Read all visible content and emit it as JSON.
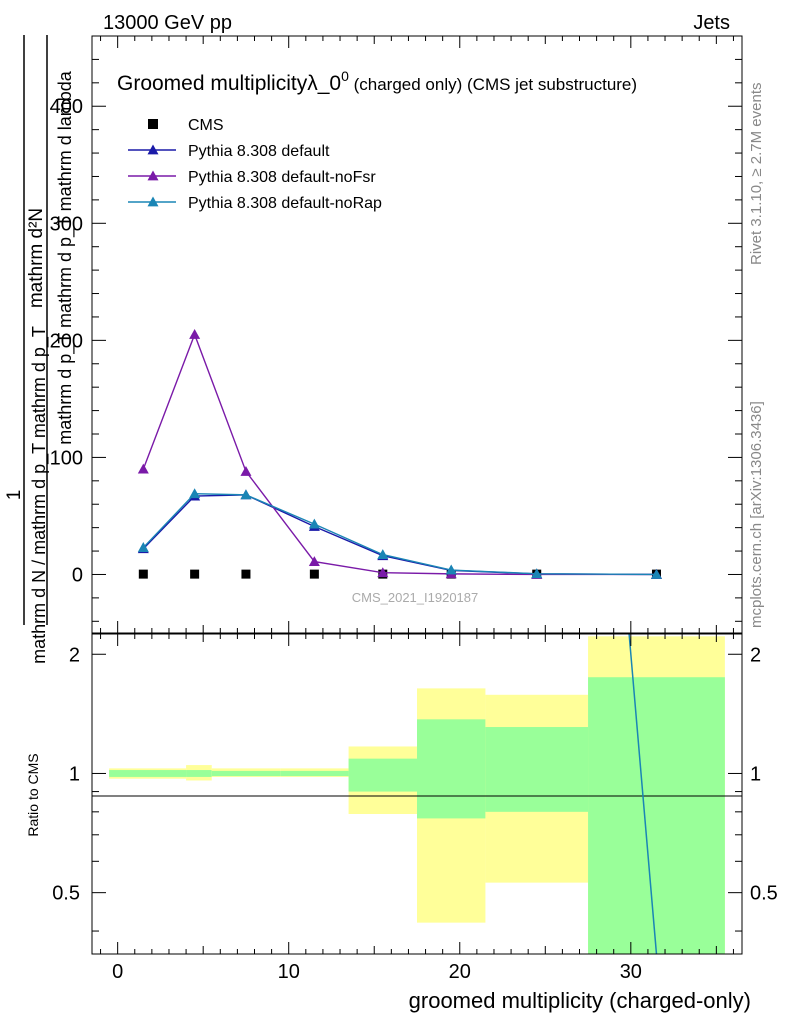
{
  "header": {
    "left": "13000 GeV pp",
    "right": "Jets"
  },
  "side_labels": {
    "rivet": "Rivet 3.1.10, ≥ 2.7M events",
    "mcplots": "mcplots.cern.ch [arXiv:1306.3436]"
  },
  "main_panel": {
    "title_main": "Groomed multiplicityλ_0",
    "title_sup": "0",
    "title_rest": " (charged only) (CMS jet substructure)",
    "watermark": "CMS_2021_I1920187",
    "ylabel_frac_num": "mathrm d²N",
    "ylabel_frac_den": "mathrm d p_T mathrm d p_T mathrm d lambda",
    "ylabel_prefactor_num": "1",
    "ylabel_prefactor_den": "mathrm d N / mathrm d p_T mathrm d p_T"
  },
  "ratio_panel": {
    "ylabel": "Ratio to CMS"
  },
  "xlabel": "groomed multiplicity (charged-only)",
  "chart_data": [
    {
      "type": "line",
      "xlim": [
        -1.5,
        36.5
      ],
      "ylim": [
        -50,
        460
      ],
      "yticks": [
        0,
        100,
        200,
        300,
        400
      ],
      "legend_position": "top-left",
      "series": [
        {
          "name": "CMS",
          "marker": "square",
          "color": "#000000",
          "x": [
            1.5,
            4.5,
            7.5,
            11.5,
            15.5,
            19.5,
            24.5,
            31.5
          ],
          "y": [
            0.3,
            0.3,
            0.3,
            0.3,
            0.3,
            0.3,
            0.3,
            0.3
          ]
        },
        {
          "name": "Pythia 8.308 default",
          "marker": "triangle",
          "color": "#1a1aa8",
          "x": [
            1.5,
            4.5,
            7.5,
            11.5,
            15.5,
            19.5,
            24.5,
            31.5
          ],
          "y": [
            22,
            67,
            68,
            41,
            16,
            3.5,
            0.5,
            0
          ]
        },
        {
          "name": "Pythia 8.308 default-noFsr",
          "marker": "triangle",
          "color": "#7a1aa8",
          "x": [
            1.5,
            4.5,
            7.5,
            11.5,
            15.5,
            19.5,
            24.5,
            31.5
          ],
          "y": [
            90,
            205,
            88,
            11,
            1.5,
            0.5,
            0,
            0
          ]
        },
        {
          "name": "Pythia 8.308 default-noRap",
          "marker": "triangle",
          "color": "#1a85b5",
          "x": [
            1.5,
            4.5,
            7.5,
            11.5,
            15.5,
            19.5,
            24.5,
            31.5
          ],
          "y": [
            23,
            69,
            68,
            43,
            17,
            3.8,
            0.6,
            0
          ]
        }
      ]
    },
    {
      "type": "area",
      "xlim": [
        -1.5,
        36.5
      ],
      "ylim": [
        0.35,
        2.25
      ],
      "yticks": [
        0.5,
        1,
        2
      ],
      "reference_line": 1,
      "bins": [
        {
          "x0": -0.5,
          "x1": 4,
          "yellow": [
            0.97,
            1.03
          ],
          "green": [
            0.98,
            1.02
          ]
        },
        {
          "x0": 4,
          "x1": 5.5,
          "yellow": [
            0.96,
            1.05
          ],
          "green": [
            0.98,
            1.02
          ]
        },
        {
          "x0": 5.5,
          "x1": 9.5,
          "yellow": [
            0.98,
            1.03
          ],
          "green": [
            0.985,
            1.015
          ]
        },
        {
          "x0": 9.5,
          "x1": 13.5,
          "yellow": [
            0.98,
            1.03
          ],
          "green": [
            0.985,
            1.015
          ]
        },
        {
          "x0": 13.5,
          "x1": 17.5,
          "yellow": [
            0.79,
            1.17
          ],
          "green": [
            0.9,
            1.09
          ]
        },
        {
          "x0": 17.5,
          "x1": 21.5,
          "yellow": [
            0.42,
            1.64
          ],
          "green": [
            0.77,
            1.37
          ]
        },
        {
          "x0": 21.5,
          "x1": 27.5,
          "yellow": [
            0.53,
            1.58
          ],
          "green": [
            0.8,
            1.31
          ]
        },
        {
          "x0": 27.5,
          "x1": 35.5,
          "yellow": [
            0.35,
            2.22
          ],
          "green": [
            0.35,
            1.75
          ]
        }
      ],
      "ratio_curve": {
        "color": "#1a85b5",
        "x": [
          29.9,
          31.5
        ],
        "y": [
          2.25,
          0.35
        ]
      }
    }
  ]
}
